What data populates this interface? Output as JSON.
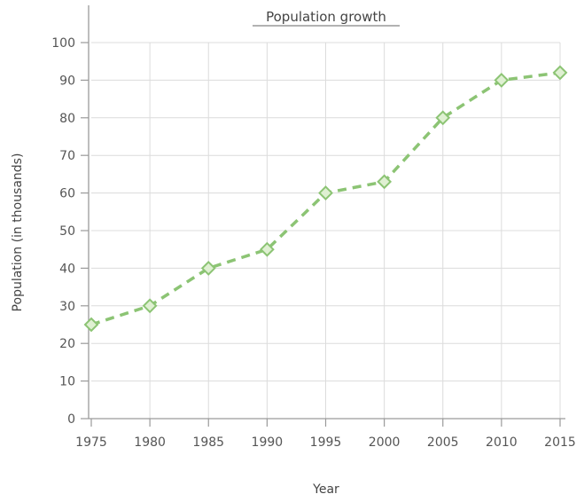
{
  "chart_data": {
    "type": "line",
    "title": "Population growth",
    "xlabel": "Year",
    "ylabel": "Population (in thousands)",
    "x": [
      1975,
      1980,
      1985,
      1990,
      1995,
      2000,
      2005,
      2010,
      2015
    ],
    "series": [
      {
        "values": [
          25,
          30,
          40,
          45,
          60,
          63,
          80,
          90,
          92
        ]
      }
    ],
    "xlim": [
      1975,
      2015
    ],
    "ylim": [
      0,
      100
    ],
    "yticks": [
      0,
      10,
      20,
      30,
      40,
      50,
      60,
      70,
      80,
      90,
      100
    ],
    "grid": true,
    "line_style": "dashed",
    "marker": "diamond",
    "colors": {
      "series": "#8cc474",
      "grid": "#dcdcdc",
      "axis": "#9a9a9a"
    }
  }
}
